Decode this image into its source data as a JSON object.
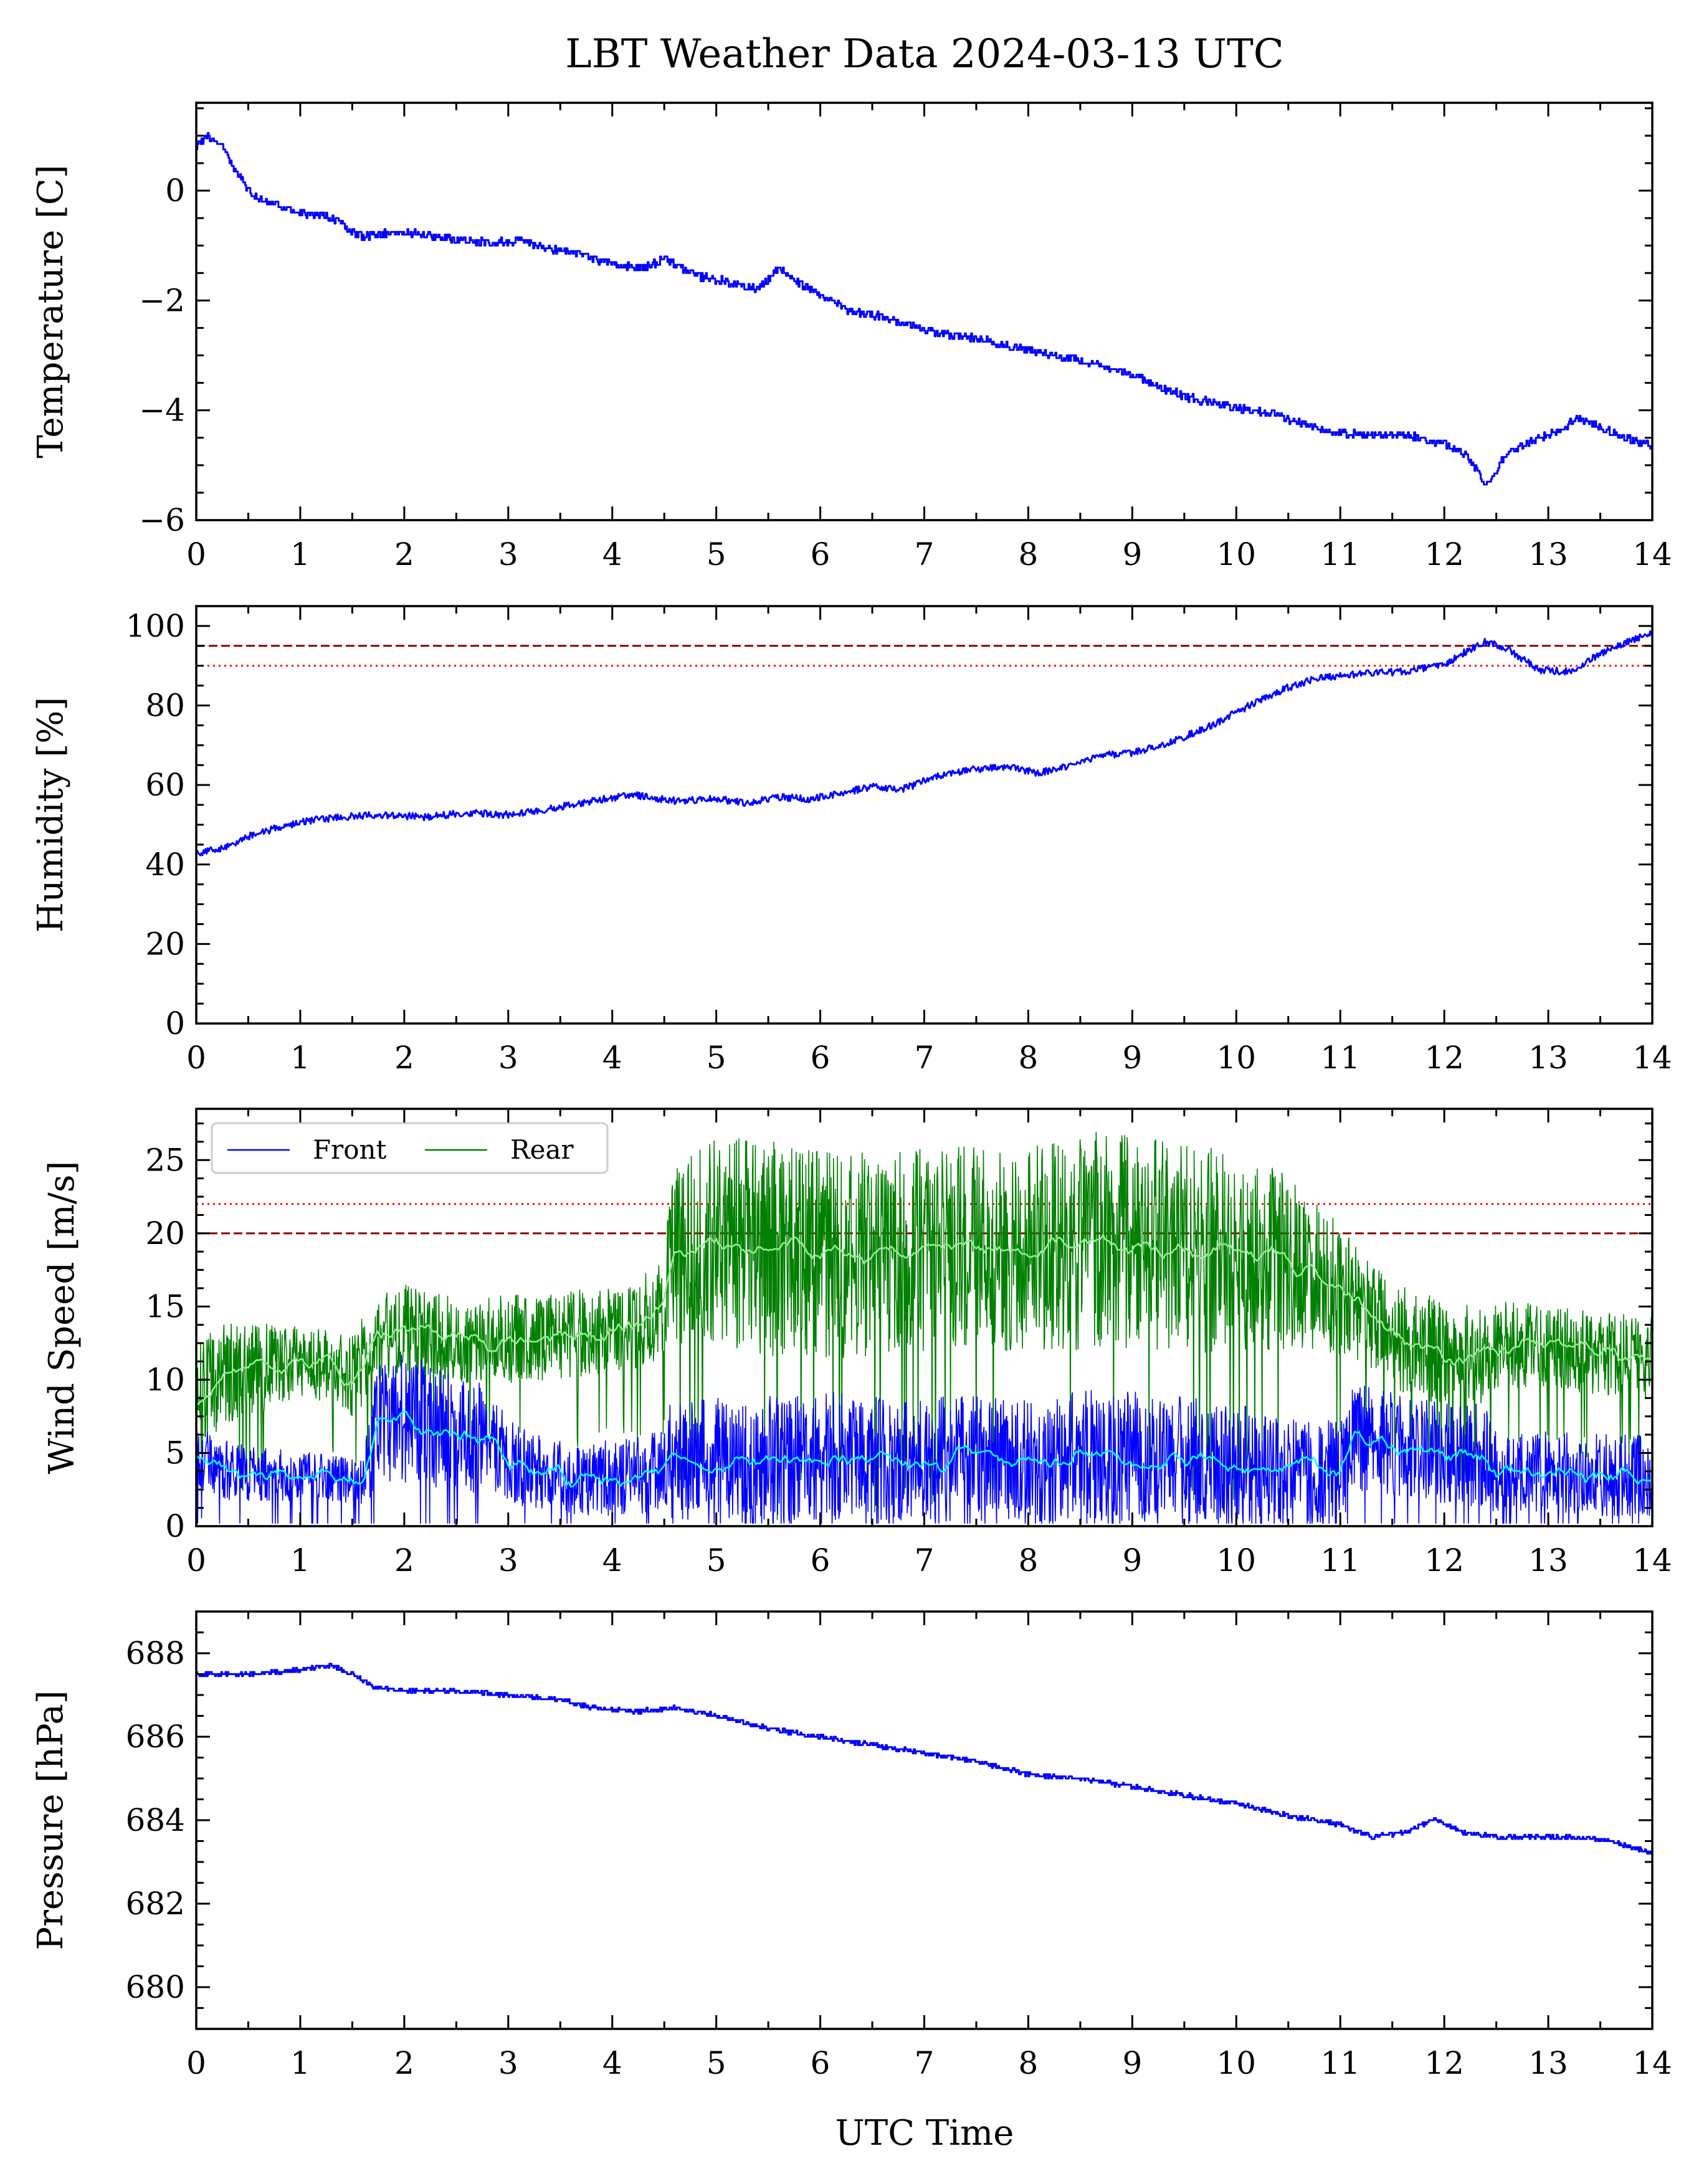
{
  "title": "LBT Weather Data 2024-03-13 UTC",
  "xlabel": "UTC Time",
  "colors": {
    "temperature": "#0000ff",
    "humidity": "#0000ff",
    "wind_front": "#0000ff",
    "wind_front_mean": "#00ffff",
    "wind_rear": "#008000",
    "wind_rear_mean": "#90ee90",
    "pressure": "#0000ff",
    "limit_dashed": "#8b0000",
    "limit_dotted": "#ff0000"
  },
  "chart_data": [
    {
      "type": "line",
      "id": "temperature",
      "ylabel": "Temperature [C]",
      "xlim": [
        0,
        14
      ],
      "ylim": [
        -6,
        1.6
      ],
      "xticks": [
        0,
        1,
        2,
        3,
        4,
        5,
        6,
        7,
        8,
        9,
        10,
        11,
        12,
        13,
        14
      ],
      "yticks": [
        -6,
        -4,
        -2,
        0
      ],
      "ytick_labels": [
        "−6",
        "−4",
        "−2",
        "0"
      ],
      "series": [
        {
          "x": [
            0,
            0.1,
            0.25,
            0.4,
            0.55,
            0.8,
            1,
            1.3,
            1.6,
            1.9,
            2.2,
            2.5,
            2.8,
            3.1,
            3.4,
            3.7,
            4,
            4.3,
            4.5,
            4.8,
            5.1,
            5.4,
            5.6,
            5.8,
            6.0,
            6.3,
            6.6,
            7.0,
            7.5,
            8.0,
            8.5,
            9.0,
            9.3,
            9.6,
            10.0,
            10.4,
            10.8,
            11.2,
            11.6,
            12.0,
            12.2,
            12.4,
            12.6,
            12.8,
            13.0,
            13.3,
            13.6,
            13.8,
            14.0
          ],
          "y": [
            0.8,
            1.0,
            0.8,
            0.3,
            -0.1,
            -0.3,
            -0.4,
            -0.5,
            -0.85,
            -0.75,
            -0.8,
            -0.9,
            -0.95,
            -0.9,
            -1.05,
            -1.15,
            -1.35,
            -1.4,
            -1.25,
            -1.55,
            -1.65,
            -1.8,
            -1.4,
            -1.7,
            -1.9,
            -2.2,
            -2.3,
            -2.55,
            -2.7,
            -2.9,
            -3.1,
            -3.35,
            -3.6,
            -3.8,
            -3.95,
            -4.1,
            -4.35,
            -4.45,
            -4.45,
            -4.6,
            -4.8,
            -5.35,
            -4.8,
            -4.6,
            -4.45,
            -4.15,
            -4.4,
            -4.55,
            -4.65
          ]
        }
      ]
    },
    {
      "type": "line",
      "id": "humidity",
      "ylabel": "Humidity [%]",
      "xlim": [
        0,
        14
      ],
      "ylim": [
        0,
        105
      ],
      "xticks": [
        0,
        1,
        2,
        3,
        4,
        5,
        6,
        7,
        8,
        9,
        10,
        11,
        12,
        13,
        14
      ],
      "yticks": [
        0,
        20,
        40,
        60,
        80,
        100
      ],
      "hlines": [
        {
          "y": 95,
          "style": "dashed"
        },
        {
          "y": 90,
          "style": "dotted"
        }
      ],
      "series": [
        {
          "x": [
            0,
            0.25,
            0.5,
            0.8,
            1.1,
            1.4,
            1.8,
            2.2,
            2.6,
            3.0,
            3.4,
            3.8,
            4.2,
            4.6,
            5.0,
            5.3,
            5.6,
            5.9,
            6.2,
            6.5,
            6.8,
            7.1,
            7.5,
            7.8,
            8.1,
            8.4,
            8.7,
            9.0,
            9.4,
            9.8,
            10.2,
            10.5,
            10.8,
            11.2,
            11.6,
            12.0,
            12.2,
            12.4,
            12.6,
            12.9,
            13.2,
            13.5,
            13.8,
            14.0
          ],
          "y": [
            43,
            44,
            47,
            49.5,
            51,
            52,
            52.5,
            52,
            53,
            52.5,
            54,
            56,
            57.5,
            56,
            56.5,
            55.5,
            57,
            56.5,
            58,
            59.5,
            59,
            62,
            64,
            64.5,
            63,
            65,
            67.5,
            68,
            71,
            75.5,
            81,
            84.5,
            87,
            88,
            88.5,
            90,
            93.5,
            96,
            94.5,
            89,
            88.5,
            93,
            96.5,
            98
          ]
        }
      ]
    },
    {
      "type": "line",
      "id": "wind",
      "ylabel": "Wind Speed [m/s]",
      "xlim": [
        0,
        14
      ],
      "ylim": [
        0,
        28.5
      ],
      "xticks": [
        0,
        1,
        2,
        3,
        4,
        5,
        6,
        7,
        8,
        9,
        10,
        11,
        12,
        13,
        14
      ],
      "yticks": [
        0,
        5,
        10,
        15,
        20,
        25
      ],
      "hlines": [
        {
          "y": 22,
          "style": "dotted"
        },
        {
          "y": 20,
          "style": "dashed"
        }
      ],
      "legend": {
        "position": "top-left",
        "entries": [
          "Front",
          "Rear"
        ]
      },
      "series": [
        {
          "name": "Front",
          "kind": "mean",
          "x": [
            0,
            0.3,
            0.7,
            1.2,
            1.6,
            1.75,
            2.0,
            2.4,
            2.8,
            3.2,
            3.6,
            4.0,
            4.4,
            4.55,
            5.0,
            5.6,
            6.2,
            6.8,
            7.4,
            8.0,
            8.6,
            9.2,
            9.8,
            10.4,
            11.0,
            11.15,
            11.6,
            12.0,
            12.4,
            12.55,
            13.0,
            13.5,
            14.0
          ],
          "y": [
            4.8,
            3.8,
            3.5,
            3.4,
            3.0,
            7.0,
            7.5,
            6.5,
            5.8,
            3.8,
            3.2,
            3.3,
            3.6,
            4.3,
            4.6,
            4.4,
            4.8,
            4.4,
            4.7,
            4.4,
            4.9,
            4.7,
            4.5,
            4.0,
            3.6,
            6.2,
            5.4,
            5.0,
            4.8,
            3.5,
            3.7,
            3.5,
            3.4
          ],
          "amplitude": [
            2.0,
            2.0,
            1.8,
            1.6,
            1.5,
            4.5,
            4.5,
            4.0,
            3.8,
            2.6,
            2.4,
            2.6,
            2.8,
            4.0,
            4.2,
            4.5,
            4.4,
            4.2,
            4.3,
            4.2,
            4.5,
            4.4,
            4.2,
            3.8,
            3.6,
            3.8,
            3.5,
            3.5,
            3.5,
            2.8,
            2.8,
            2.8,
            2.8
          ]
        },
        {
          "name": "Rear",
          "kind": "mean",
          "x": [
            0,
            0.3,
            0.7,
            1.0,
            1.3,
            1.5,
            1.7,
            2.0,
            2.3,
            2.7,
            3.0,
            3.4,
            3.8,
            4.2,
            4.5,
            4.6,
            5.0,
            5.6,
            6.2,
            6.8,
            7.4,
            8.0,
            8.6,
            9.2,
            9.8,
            10.4,
            10.8,
            11.15,
            11.3,
            11.7,
            12.1,
            12.4,
            12.55,
            13.0,
            13.5,
            14.0
          ],
          "y": [
            8.0,
            10.5,
            10.8,
            11.2,
            11.0,
            10.0,
            12.5,
            13.5,
            13.0,
            12.5,
            12.8,
            13.0,
            13.2,
            13.5,
            15.5,
            18.5,
            19.5,
            19.0,
            18.5,
            18.8,
            19.2,
            18.8,
            19.5,
            19.0,
            18.8,
            18.5,
            17.0,
            15.5,
            14.0,
            12.5,
            11.5,
            11.8,
            12.5,
            12.2,
            11.8,
            11.5
          ],
          "amplitude": [
            4.5,
            3.5,
            3.0,
            2.5,
            2.5,
            3.0,
            3.0,
            3.0,
            3.0,
            3.0,
            3.0,
            3.0,
            3.0,
            3.0,
            4.0,
            6.0,
            7.0,
            7.5,
            7.0,
            7.0,
            7.0,
            7.0,
            7.5,
            7.5,
            7.0,
            6.5,
            5.0,
            4.0,
            4.0,
            3.8,
            3.5,
            3.5,
            3.0,
            2.8,
            2.8,
            2.8
          ]
        }
      ]
    },
    {
      "type": "line",
      "id": "pressure",
      "ylabel": "Pressure [hPa]",
      "xlim": [
        0,
        14
      ],
      "ylim": [
        679,
        689
      ],
      "xticks": [
        0,
        1,
        2,
        3,
        4,
        5,
        6,
        7,
        8,
        9,
        10,
        11,
        12,
        13,
        14
      ],
      "yticks": [
        680,
        682,
        684,
        686,
        688
      ],
      "series": [
        {
          "x": [
            0,
            0.5,
            1.0,
            1.3,
            1.5,
            1.7,
            2.0,
            2.5,
            3.0,
            3.5,
            3.8,
            4.2,
            4.6,
            5.0,
            5.5,
            6.0,
            6.5,
            7.0,
            7.5,
            8.0,
            8.5,
            9.0,
            9.5,
            10.0,
            10.5,
            11.0,
            11.3,
            11.6,
            11.9,
            12.2,
            12.5,
            13.0,
            13.3,
            13.6,
            14.0
          ],
          "y": [
            687.5,
            687.5,
            687.6,
            687.7,
            687.5,
            687.2,
            687.1,
            687.1,
            687.0,
            686.9,
            686.7,
            686.6,
            686.7,
            686.5,
            686.2,
            686.0,
            685.8,
            685.6,
            685.4,
            685.1,
            685.0,
            684.8,
            684.6,
            684.4,
            684.1,
            683.9,
            683.6,
            683.7,
            684.0,
            683.7,
            683.6,
            683.6,
            683.6,
            683.5,
            683.2
          ]
        }
      ]
    }
  ]
}
